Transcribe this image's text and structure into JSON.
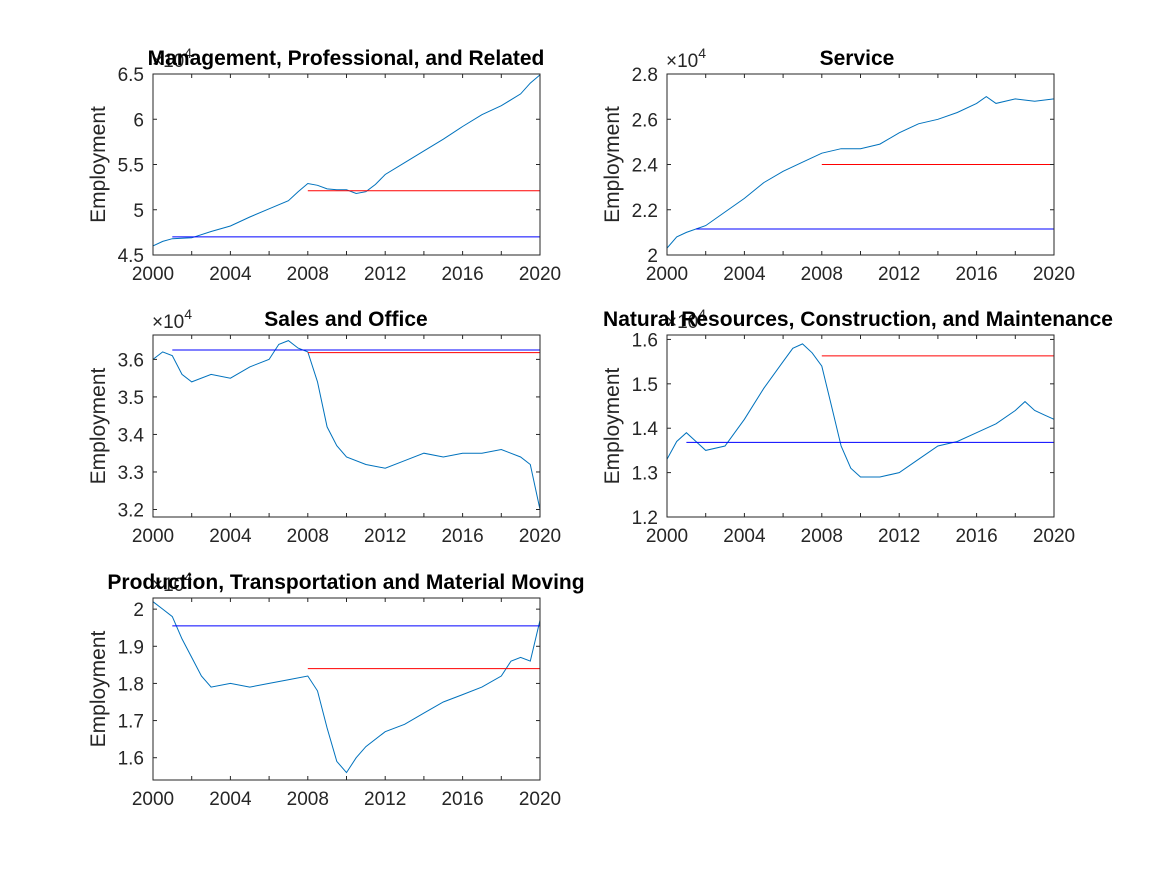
{
  "chart_data": [
    {
      "type": "line",
      "title": "Management, Professional, and Related",
      "ylabel": "Employment",
      "y_exponent": "4",
      "xlim": [
        2000,
        2020
      ],
      "ylim": [
        45000,
        65000
      ],
      "xticks": [
        2000,
        2004,
        2008,
        2012,
        2016,
        2020
      ],
      "yticks": [
        45000,
        50000,
        55000,
        60000,
        65000
      ],
      "ytick_labels": [
        "4.5",
        "5",
        "5.5",
        "6",
        "6.5"
      ],
      "series": [
        {
          "color": "#0072BD",
          "x": [
            2000,
            2000.5,
            2001,
            2002,
            2003,
            2004,
            2005,
            2006,
            2007,
            2007.5,
            2008,
            2008.5,
            2009,
            2009.5,
            2010,
            2010.5,
            2011,
            2011.5,
            2012,
            2013,
            2014,
            2015,
            2016,
            2017,
            2018,
            2019,
            2019.5,
            2020
          ],
          "y": [
            46000,
            46500,
            46800,
            46900,
            47600,
            48200,
            49200,
            50100,
            51000,
            52000,
            52900,
            52700,
            52300,
            52200,
            52200,
            51800,
            52000,
            52800,
            53900,
            55200,
            56500,
            57800,
            59200,
            60500,
            61500,
            62800,
            64000,
            64900
          ]
        },
        {
          "color": "#0000FF",
          "x": [
            2001,
            2020
          ],
          "y": [
            47000,
            47000
          ]
        },
        {
          "color": "#FF0000",
          "x": [
            2008,
            2020
          ],
          "y": [
            52100,
            52100
          ]
        }
      ]
    },
    {
      "type": "line",
      "title": "Service",
      "ylabel": "Employment",
      "y_exponent": "4",
      "xlim": [
        2000,
        2020
      ],
      "ylim": [
        20000,
        28000
      ],
      "xticks": [
        2000,
        2004,
        2008,
        2012,
        2016,
        2020
      ],
      "yticks": [
        20000,
        22000,
        24000,
        26000,
        28000
      ],
      "ytick_labels": [
        "2",
        "2.2",
        "2.4",
        "2.6",
        "2.8"
      ],
      "series": [
        {
          "color": "#0072BD",
          "x": [
            2000,
            2000.5,
            2001,
            2002,
            2003,
            2004,
            2005,
            2006,
            2007,
            2008,
            2009,
            2010,
            2011,
            2012,
            2013,
            2014,
            2015,
            2016,
            2016.5,
            2017,
            2018,
            2019,
            2020
          ],
          "y": [
            20300,
            20800,
            21000,
            21300,
            21900,
            22500,
            23200,
            23700,
            24100,
            24500,
            24700,
            24700,
            24900,
            25400,
            25800,
            26000,
            26300,
            26700,
            27000,
            26700,
            26900,
            26800,
            26900
          ]
        },
        {
          "color": "#0000FF",
          "x": [
            2001.5,
            2020
          ],
          "y": [
            21150,
            21150
          ]
        },
        {
          "color": "#FF0000",
          "x": [
            2008,
            2020
          ],
          "y": [
            24000,
            24000
          ]
        }
      ]
    },
    {
      "type": "line",
      "title": "Sales and Office",
      "ylabel": "Employment",
      "y_exponent": "4",
      "xlim": [
        2000,
        2020
      ],
      "ylim": [
        31800,
        36650
      ],
      "xticks": [
        2000,
        2004,
        2008,
        2012,
        2016,
        2020
      ],
      "yticks": [
        32000,
        33000,
        34000,
        35000,
        36000
      ],
      "ytick_labels": [
        "3.2",
        "3.3",
        "3.4",
        "3.5",
        "3.6"
      ],
      "series": [
        {
          "color": "#0072BD",
          "x": [
            2000,
            2000.5,
            2001,
            2001.5,
            2002,
            2003,
            2004,
            2005,
            2006,
            2006.5,
            2007,
            2007.5,
            2008,
            2008.5,
            2009,
            2009.5,
            2010,
            2011,
            2012,
            2013,
            2014,
            2015,
            2016,
            2017,
            2018,
            2019,
            2019.5,
            2020
          ],
          "y": [
            36000,
            36200,
            36100,
            35600,
            35400,
            35600,
            35500,
            35800,
            36000,
            36400,
            36500,
            36300,
            36200,
            35400,
            34200,
            33700,
            33400,
            33200,
            33100,
            33300,
            33500,
            33400,
            33500,
            33500,
            33600,
            33400,
            33200,
            32000
          ]
        },
        {
          "color": "#0000FF",
          "x": [
            2001,
            2020
          ],
          "y": [
            36250,
            36250
          ]
        },
        {
          "color": "#FF0000",
          "x": [
            2008,
            2020
          ],
          "y": [
            36180,
            36180
          ]
        }
      ]
    },
    {
      "type": "line",
      "title": "Natural Resources, Construction, and Maintenance",
      "ylabel": "Employment",
      "y_exponent": "4",
      "xlim": [
        2000,
        2020
      ],
      "ylim": [
        12000,
        16100
      ],
      "xticks": [
        2000,
        2004,
        2008,
        2012,
        2016,
        2020
      ],
      "yticks": [
        12000,
        13000,
        14000,
        15000,
        16000
      ],
      "ytick_labels": [
        "1.2",
        "1.3",
        "1.4",
        "1.5",
        "1.6"
      ],
      "series": [
        {
          "color": "#0072BD",
          "x": [
            2000,
            2000.5,
            2001,
            2001.5,
            2002,
            2003,
            2004,
            2005,
            2006,
            2006.5,
            2007,
            2007.5,
            2008,
            2008.5,
            2009,
            2009.5,
            2010,
            2011,
            2012,
            2013,
            2014,
            2015,
            2016,
            2017,
            2018,
            2018.5,
            2019,
            2019.5,
            2020
          ],
          "y": [
            13300,
            13700,
            13900,
            13700,
            13500,
            13600,
            14200,
            14900,
            15500,
            15800,
            15900,
            15700,
            15400,
            14500,
            13600,
            13100,
            12900,
            12900,
            13000,
            13300,
            13600,
            13700,
            13900,
            14100,
            14400,
            14600,
            14400,
            14300,
            14200
          ]
        },
        {
          "color": "#0000FF",
          "x": [
            2001,
            2020
          ],
          "y": [
            13680,
            13680
          ]
        },
        {
          "color": "#FF0000",
          "x": [
            2008,
            2020
          ],
          "y": [
            15630,
            15630
          ]
        }
      ]
    },
    {
      "type": "line",
      "title": "Production, Transportation and Material Moving",
      "ylabel": "Employment",
      "y_exponent": "4",
      "xlim": [
        2000,
        2020
      ],
      "ylim": [
        15400,
        20300
      ],
      "xticks": [
        2000,
        2004,
        2008,
        2012,
        2016,
        2020
      ],
      "yticks": [
        16000,
        17000,
        18000,
        19000,
        20000
      ],
      "ytick_labels": [
        "1.6",
        "1.7",
        "1.8",
        "1.9",
        "2"
      ],
      "series": [
        {
          "color": "#0072BD",
          "x": [
            2000,
            2000.5,
            2001,
            2001.5,
            2002,
            2002.5,
            2003,
            2004,
            2005,
            2006,
            2007,
            2008,
            2008.5,
            2009,
            2009.5,
            2010,
            2010.5,
            2011,
            2012,
            2013,
            2014,
            2015,
            2016,
            2017,
            2018,
            2018.5,
            2019,
            2019.5,
            2020
          ],
          "y": [
            20200,
            20000,
            19800,
            19200,
            18700,
            18200,
            17900,
            18000,
            17900,
            18000,
            18100,
            18200,
            17800,
            16800,
            15900,
            15600,
            16000,
            16300,
            16700,
            16900,
            17200,
            17500,
            17700,
            17900,
            18200,
            18600,
            18700,
            18600,
            19700
          ]
        },
        {
          "color": "#0000FF",
          "x": [
            2001,
            2020
          ],
          "y": [
            19550,
            19550
          ]
        },
        {
          "color": "#FF0000",
          "x": [
            2008,
            2020
          ],
          "y": [
            18400,
            18400
          ]
        }
      ]
    }
  ]
}
